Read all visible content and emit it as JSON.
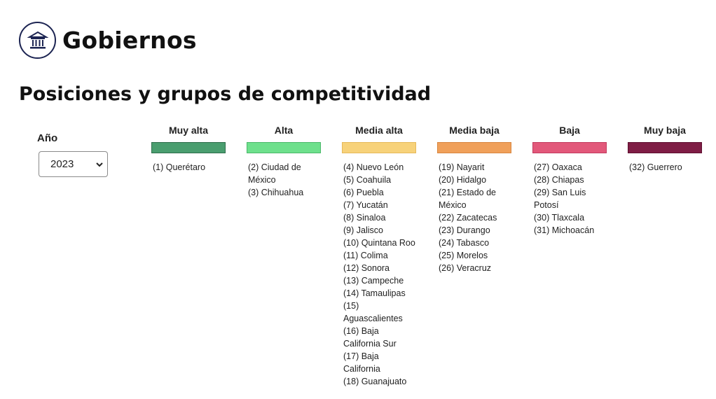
{
  "brand": {
    "title": "Gobiernos",
    "icon": "government-building-icon"
  },
  "page_title": "Posiciones y grupos de competitividad",
  "year": {
    "label": "Año",
    "selected": "2023"
  },
  "groups": [
    {
      "title": "Muy alta",
      "color": "#4a9e6f",
      "border": "#2e6e4b",
      "items": [
        "(1) Querétaro"
      ]
    },
    {
      "title": "Alta",
      "color": "#6ee08c",
      "border": "#4bb86a",
      "items": [
        "(2) Ciudad de México",
        "(3) Chihuahua"
      ]
    },
    {
      "title": "Media alta",
      "color": "#f7d27a",
      "border": "#e6b95a",
      "items": [
        "(4) Nuevo León",
        "(5) Coahuila",
        "(6) Puebla",
        "(7) Yucatán",
        "(8) Sinaloa",
        "(9) Jalisco",
        "(10) Quintana Roo",
        "(11) Colima",
        "(12) Sonora",
        "(13) Campeche",
        "(14) Tamaulipas",
        "(15) Aguascalientes",
        "(16) Baja California Sur",
        "(17) Baja California",
        "(18) Guanajuato"
      ]
    },
    {
      "title": "Media baja",
      "color": "#f0a05a",
      "border": "#d88640",
      "items": [
        "(19) Nayarit",
        "(20) Hidalgo",
        "(21) Estado de México",
        "(22) Zacatecas",
        "(23) Durango",
        "(24) Tabasco",
        "(25) Morelos",
        "(26) Veracruz"
      ]
    },
    {
      "title": "Baja",
      "color": "#e2587a",
      "border": "#c23a5e",
      "items": [
        "(27) Oaxaca",
        "(28) Chiapas",
        "(29) San Luis Potosí",
        "(30) Tlaxcala",
        "(31) Michoacán"
      ]
    },
    {
      "title": "Muy baja",
      "color": "#7f1d45",
      "border": "#5e0f30",
      "items": [
        "(32) Guerrero"
      ]
    }
  ]
}
